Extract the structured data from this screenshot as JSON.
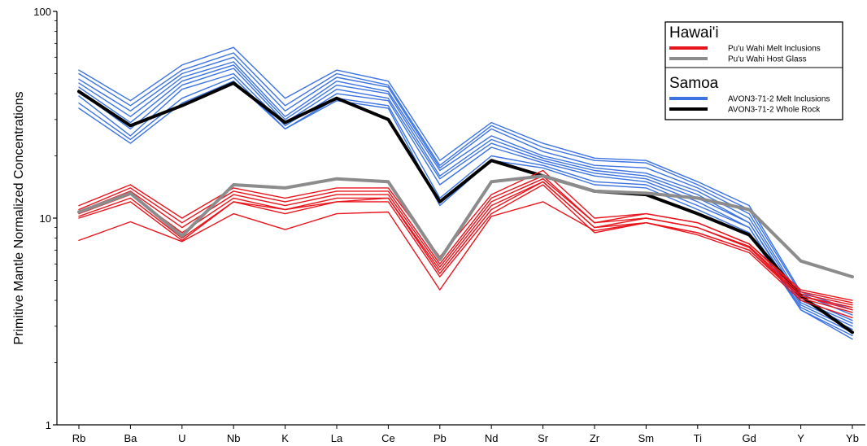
{
  "chart_data": {
    "type": "line",
    "title": "",
    "xlabel": "",
    "ylabel": "Primitive Mantle Normalized Concentrations",
    "yscale": "log",
    "ylim": [
      1,
      100
    ],
    "y_ticks": [
      "1",
      "10",
      "100"
    ],
    "grid": false,
    "legend_position": "top-right",
    "categories": [
      "Rb",
      "Ba",
      "U",
      "Nb",
      "K",
      "La",
      "Ce",
      "Pb",
      "Nd",
      "Sr",
      "Zr",
      "Sm",
      "Ti",
      "Gd",
      "Y",
      "Yb"
    ],
    "legend": {
      "groups": [
        {
          "heading": "Hawai'i",
          "entries": [
            {
              "label": "Pu'u Wahi Melt Inclusions",
              "color": "#e8141c"
            },
            {
              "label": "Pu'u Wahi Host Glass",
              "color": "#8c8c8c"
            }
          ]
        },
        {
          "heading": "Samoa",
          "entries": [
            {
              "label": "AVON3-71-2 Melt Inclusions",
              "color": "#3b73e0"
            },
            {
              "label": "AVON3-71-2 Whole Rock",
              "color": "#000000"
            }
          ]
        }
      ]
    },
    "groups": [
      {
        "name": "AVON3-71-2 Melt Inclusions",
        "color": "#3b73e0",
        "series": [
          {
            "values": [
              52,
              37,
              55,
              67,
              38,
              52,
              46,
              19,
              29,
              23,
              19.5,
              19,
              15,
              11.5,
              4.4,
              3.6
            ]
          },
          {
            "values": [
              50,
              35,
              52,
              63,
              35,
              50,
              44,
              18,
              28,
              22,
              19,
              18.5,
              14.5,
              11,
              4.3,
              3.4
            ]
          },
          {
            "values": [
              47,
              33,
              50,
              60,
              33,
              48,
              43,
              17.5,
              27,
              21,
              18,
              17.5,
              14,
              10.5,
              4.1,
              3.2
            ]
          },
          {
            "values": [
              45,
              31,
              48,
              57,
              31,
              46,
              41,
              17,
              25,
              20,
              17.5,
              16.5,
              13.5,
              10,
              4.0,
              3.1
            ]
          },
          {
            "values": [
              43,
              29,
              46,
              55,
              30,
              44,
              40,
              16,
              24,
              19.5,
              17,
              16,
              13,
              9.5,
              3.9,
              3.0
            ]
          },
          {
            "values": [
              41,
              27,
              44,
              53,
              29,
              42,
              38,
              15.5,
              23,
              19,
              16.5,
              15.5,
              12.5,
              9.5,
              3.8,
              2.9
            ]
          },
          {
            "values": [
              39,
              25,
              42,
              50,
              28,
              40,
              37,
              14.5,
              22,
              18.5,
              16,
              15,
              12,
              9,
              3.7,
              2.8
            ]
          },
          {
            "values": [
              36,
              24,
              38,
              48,
              27,
              38,
              35,
              12.5,
              20,
              18,
              15,
              14.5,
              11.5,
              9,
              3.6,
              2.7
            ]
          },
          {
            "values": [
              34,
              23,
              36,
              46,
              27,
              37,
              34,
              11.5,
              19,
              17.5,
              14.5,
              14,
              11,
              8.5,
              3.6,
              2.6
            ]
          }
        ]
      },
      {
        "name": "AVON3-71-2 Whole Rock",
        "color": "#000000",
        "series": [
          {
            "values": [
              41,
              28,
              35,
              45,
              29,
              38,
              30,
              12,
              19,
              16,
              13.5,
              13,
              10.5,
              8.3,
              4.2,
              2.8
            ]
          }
        ]
      },
      {
        "name": "Pu'u Wahi Melt Inclusions",
        "color": "#e8141c",
        "series": [
          {
            "values": [
              11.5,
              14.5,
              10,
              14,
              12.5,
              14,
              14,
              6.5,
              13,
              17,
              10,
              10.5,
              9.5,
              7.5,
              4.5,
              4.0
            ]
          },
          {
            "values": [
              11,
              14,
              9.5,
              13.5,
              12,
              13.5,
              13.5,
              6,
              12.5,
              16,
              9.5,
              10.5,
              9.5,
              7.5,
              4.4,
              3.9
            ]
          },
          {
            "values": [
              10.8,
              13.5,
              9,
              13,
              11.5,
              13,
              13,
              5.8,
              12,
              15.5,
              9.5,
              10,
              9,
              7.3,
              4.3,
              3.8
            ]
          },
          {
            "values": [
              10.5,
              13,
              8.5,
              12.5,
              11,
              12.5,
              12.5,
              5.6,
              11.5,
              15,
              9,
              10,
              9,
              7.2,
              4.2,
              3.7
            ]
          },
          {
            "values": [
              10.2,
              12.5,
              8,
              12,
              10.5,
              12,
              12.5,
              5.4,
              11,
              15,
              9,
              9.5,
              8.5,
              7,
              4.2,
              3.6
            ]
          },
          {
            "values": [
              10,
              12,
              7.8,
              12,
              11,
              12,
              12,
              5.2,
              10.5,
              14.5,
              8.5,
              9.5,
              8.5,
              7,
              4.1,
              3.5
            ]
          },
          {
            "values": [
              7.8,
              9.6,
              7.7,
              10.5,
              8.8,
              10.5,
              10.7,
              4.5,
              10.2,
              12,
              8.7,
              9.5,
              8.3,
              6.8,
              4.0,
              3.3
            ]
          }
        ]
      },
      {
        "name": "Pu'u Wahi Host Glass",
        "color": "#8c8c8c",
        "series": [
          {
            "values": [
              10.7,
              13.2,
              8.2,
              14.5,
              14,
              15.5,
              15,
              6.3,
              15,
              16,
              13.5,
              13.2,
              12.5,
              11,
              6.2,
              5.2
            ]
          }
        ]
      }
    ]
  }
}
